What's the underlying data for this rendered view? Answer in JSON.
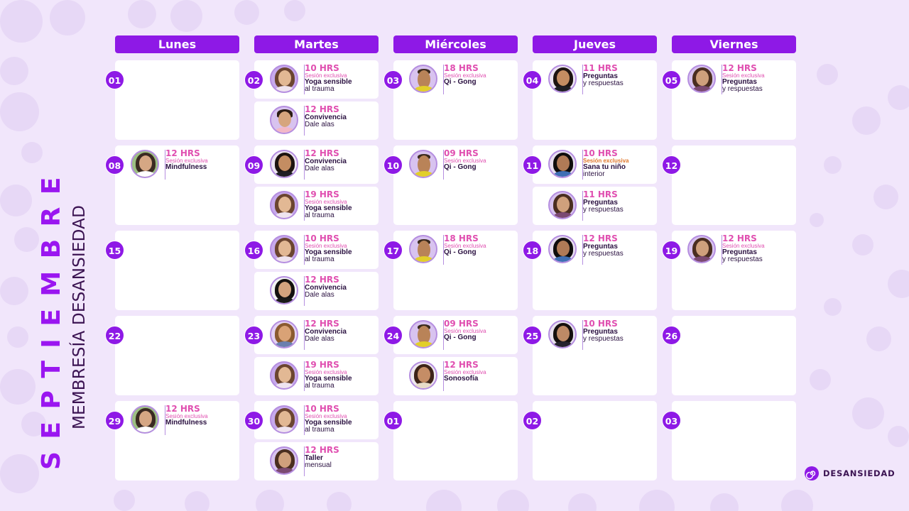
{
  "month": "SEPTIEMBRE",
  "membership": "MEMBRESÍA DESANSIEDAD",
  "brand": {
    "name": "DESANSIEDAD",
    "logo_icon": "spiral-logo-icon",
    "accent": "#8e19e6",
    "highlight": "#e04fb0"
  },
  "days": [
    "Lunes",
    "Martes",
    "Miércoles",
    "Jueves",
    "Viernes"
  ],
  "weeks": [
    [
      {
        "num": "01",
        "events": []
      },
      {
        "num": "02",
        "events": [
          {
            "avatar": "av-eli",
            "hours": "10 HRS",
            "sub": "Sesión exclusiva",
            "title": "Yoga sensible",
            "line2": "al trauma"
          },
          {
            "avatar": "av-jav",
            "hours": "12 HRS",
            "sub": "",
            "title": "Convivencia",
            "line2": "Dale alas"
          }
        ]
      },
      {
        "num": "03",
        "events": [
          {
            "avatar": "av-qi",
            "hours": "18 HRS",
            "sub": "Sesión exclusiva",
            "title": "Qi - Gong",
            "line2": ""
          }
        ]
      },
      {
        "num": "04",
        "events": [
          {
            "avatar": "av-ana",
            "hours": "11 HRS",
            "sub": "",
            "title": "Preguntas",
            "line2": "y respuestas"
          }
        ]
      },
      {
        "num": "05",
        "events": [
          {
            "avatar": "av-ros",
            "hours": "12 HRS",
            "sub": "Sesión exclusiva",
            "title": "Preguntas",
            "line2": "y respuestas"
          }
        ]
      }
    ],
    [
      {
        "num": "08",
        "events": [
          {
            "avatar": "av-mind",
            "hours": "12 HRS",
            "sub": "Sesión exclusiva",
            "title": "Mindfulness",
            "line2": ""
          }
        ]
      },
      {
        "num": "09",
        "events": [
          {
            "avatar": "av-ana",
            "hours": "12 HRS",
            "sub": "",
            "title": "Convivencia",
            "line2": "Dale alas"
          },
          {
            "avatar": "av-eli",
            "hours": "19 HRS",
            "sub": "Sesión exclusiva",
            "title": "Yoga sensible",
            "line2": "al trauma"
          }
        ]
      },
      {
        "num": "10",
        "events": [
          {
            "avatar": "av-qi",
            "hours": "09 HRS",
            "sub": "Sesión exclusiva",
            "title": "Qi - Gong",
            "line2": ""
          }
        ]
      },
      {
        "num": "11",
        "events": [
          {
            "avatar": "av-lau",
            "hours": "10 HRS",
            "sub": "Sesión exclusiva",
            "sub_orange": true,
            "title": "Sana tu niño",
            "line2": "interior"
          },
          {
            "avatar": "av-ros",
            "hours": "11 HRS",
            "sub": "",
            "title": "Preguntas",
            "line2": "y respuestas"
          }
        ]
      },
      {
        "num": "12",
        "events": []
      }
    ],
    [
      {
        "num": "15",
        "events": []
      },
      {
        "num": "16",
        "events": [
          {
            "avatar": "av-eli",
            "hours": "10 HRS",
            "sub": "Sesión exclusiva",
            "title": "Yoga sensible",
            "line2": "al trauma"
          },
          {
            "avatar": "av-dal",
            "hours": "12 HRS",
            "sub": "",
            "title": "Convivencia",
            "line2": "Dale alas"
          }
        ]
      },
      {
        "num": "17",
        "events": [
          {
            "avatar": "av-qi",
            "hours": "18 HRS",
            "sub": "Sesión exclusiva",
            "title": "Qi - Gong",
            "line2": ""
          }
        ]
      },
      {
        "num": "18",
        "events": [
          {
            "avatar": "av-lau",
            "hours": "12 HRS",
            "sub": "",
            "title": "Preguntas",
            "line2": "y respuestas"
          }
        ]
      },
      {
        "num": "19",
        "events": [
          {
            "avatar": "av-ros",
            "hours": "12 HRS",
            "sub": "Sesión exclusiva",
            "title": "Preguntas",
            "line2": "y respuestas"
          }
        ]
      }
    ],
    [
      {
        "num": "22",
        "events": []
      },
      {
        "num": "23",
        "events": [
          {
            "avatar": "av-dan",
            "hours": "12 HRS",
            "sub": "",
            "title": "Convivencia",
            "line2": "Dale alas"
          },
          {
            "avatar": "av-eli",
            "hours": "19 HRS",
            "sub": "Sesión exclusiva",
            "title": "Yoga sensible",
            "line2": "al trauma"
          }
        ]
      },
      {
        "num": "24",
        "events": [
          {
            "avatar": "av-qi",
            "hours": "09 HRS",
            "sub": "Sesión exclusiva",
            "title": "Qi - Gong",
            "line2": ""
          },
          {
            "avatar": "av-son",
            "hours": "12 HRS",
            "sub": "Sesión exclusiva",
            "title": "Sonosofía",
            "line2": ""
          }
        ]
      },
      {
        "num": "25",
        "events": [
          {
            "avatar": "av-mar",
            "hours": "10 HRS",
            "sub": "",
            "title": "Preguntas",
            "line2": "y respuestas"
          }
        ]
      },
      {
        "num": "26",
        "events": []
      }
    ],
    [
      {
        "num": "29",
        "events": [
          {
            "avatar": "av-mind",
            "hours": "12 HRS",
            "sub": "Sesión exclusiva",
            "title": "Mindfulness",
            "line2": ""
          }
        ]
      },
      {
        "num": "30",
        "events": [
          {
            "avatar": "av-eli",
            "hours": "10 HRS",
            "sub": "Sesión exclusiva",
            "title": "Yoga sensible",
            "line2": "al trauma"
          },
          {
            "avatar": "av-ros",
            "hours": "12 HRS",
            "sub": "",
            "title": "Taller",
            "line2": "mensual"
          }
        ]
      },
      {
        "num": "01",
        "events": []
      },
      {
        "num": "02",
        "events": []
      },
      {
        "num": "03",
        "events": []
      }
    ]
  ]
}
